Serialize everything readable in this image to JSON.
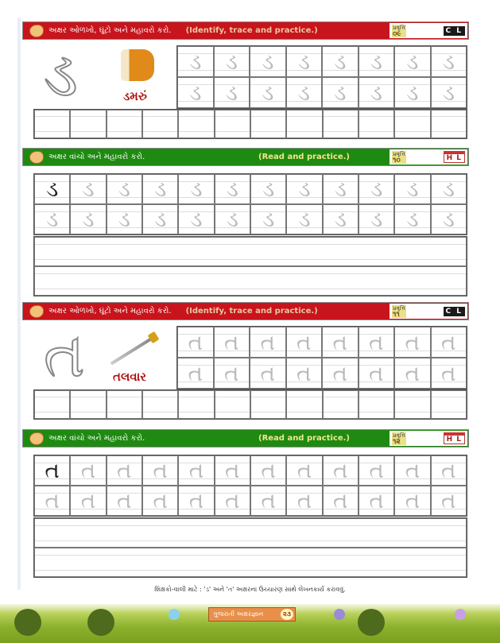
{
  "sections": [
    {
      "type": "identify",
      "color": "#c8141c",
      "title": "અક્ષર ઓળખો, ઘૂંટો અને મહાવરો કરો.",
      "english": "(Identify, trace and practice.)",
      "activity_label": "પ્રવૃત્તિ",
      "activity_number": "૦૯",
      "badge": "C L",
      "letter": "ડ",
      "word": "ડમરું",
      "picture_icon": "damru-drum-icon"
    },
    {
      "type": "read",
      "color": "#1f8a12",
      "title": "અક્ષર વાંચો અને મહાવરો કરો.",
      "english": "(Read and practice.)",
      "activity_label": "પ્રવૃત્તિ",
      "activity_number": "૧૦",
      "badge": "H L",
      "letter": "ડ"
    },
    {
      "type": "identify",
      "color": "#c8141c",
      "title": "અક્ષર ઓળખો, ઘૂંટો અને મહાવરો કરો.",
      "english": "(Identify, trace and practice.)",
      "activity_label": "પ્રવૃત્તિ",
      "activity_number": "૧૧",
      "badge": "C L",
      "letter": "ત",
      "word": "તલવાર",
      "picture_icon": "sword-icon"
    },
    {
      "type": "read",
      "color": "#1f8a12",
      "title": "અક્ષર વાંચો અને મહાવરો કરો.",
      "english": "(Read and practice.)",
      "activity_label": "પ્રવૃત્તિ",
      "activity_number": "૧૨",
      "badge": "H L",
      "letter": "ત"
    }
  ],
  "footer": {
    "note": "શિક્ષકો-વાલી માટે : 'ડ' અને 'ત' અક્ષરના ઉચ્ચારણ સાથે લેખનકાર્ય કરાવવું.",
    "book_title": "ગુજરાતી અક્ષરજ્ઞાન",
    "page_number": "૨૩"
  }
}
